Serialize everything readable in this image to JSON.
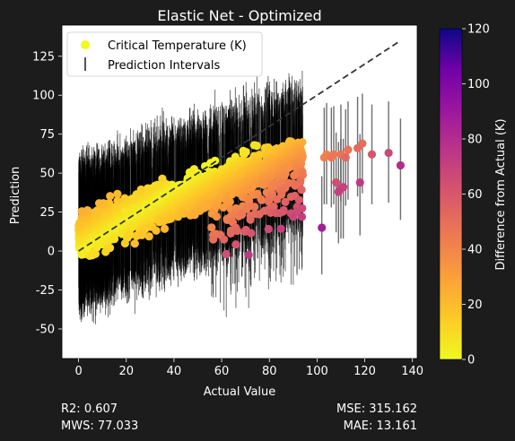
{
  "colors": {
    "background": "#1c1c1c",
    "plot_background": "#ffffff",
    "interval_color": "#000000",
    "diagonal_color": "#333333"
  },
  "chart_data": {
    "type": "scatter",
    "title": "Elastic Net - Optimized",
    "xlabel": "Actual Value",
    "ylabel": "Prediction",
    "xlim": [
      -7,
      142
    ],
    "ylim": [
      -69,
      145
    ],
    "xticks": [
      0,
      20,
      40,
      60,
      80,
      100,
      120,
      140
    ],
    "yticks": [
      -50,
      -25,
      0,
      25,
      50,
      75,
      100,
      125
    ],
    "grid": false,
    "legend": {
      "placement": "top-left",
      "entries": [
        {
          "label": "Critical Temperature (K)",
          "marker": "circle",
          "color": "#f0f921"
        },
        {
          "label": "Prediction Intervals",
          "marker": "vertical-line",
          "color": "#555555"
        }
      ]
    },
    "colorbar": {
      "label": "Difference from Actual (K)",
      "colormap": "plasma_r",
      "range": [
        0,
        120
      ],
      "ticks": [
        0,
        20,
        40,
        60,
        80,
        100,
        120
      ]
    },
    "diagonal": {
      "style": "dashed",
      "x": [
        0,
        135
      ],
      "y": [
        0,
        135
      ]
    },
    "point_color_value": "absolute difference between prediction and actual",
    "dense_cloud": {
      "x_range": [
        0,
        94
      ],
      "prediction_trend": {
        "intercept": 10,
        "slope": 0.55,
        "cap": 62
      },
      "prediction_spread": 12,
      "interval_halfwidth": 40
    },
    "highlighted_points": [
      {
        "x": 103,
        "y": 60,
        "low": 30,
        "high": 92
      },
      {
        "x": 102,
        "y": 15,
        "low": -15,
        "high": 48
      },
      {
        "x": 104,
        "y": 62,
        "low": 30,
        "high": 95
      },
      {
        "x": 106,
        "y": 60,
        "low": 28,
        "high": 92
      },
      {
        "x": 107,
        "y": 62,
        "low": 30,
        "high": 93
      },
      {
        "x": 108,
        "y": 44,
        "low": 12,
        "high": 76
      },
      {
        "x": 109,
        "y": 38,
        "low": 5,
        "high": 70
      },
      {
        "x": 110,
        "y": 62,
        "low": 32,
        "high": 94
      },
      {
        "x": 110,
        "y": 40,
        "low": 8,
        "high": 72
      },
      {
        "x": 111,
        "y": 41,
        "low": 8,
        "high": 72
      },
      {
        "x": 112,
        "y": 60,
        "low": 29,
        "high": 91
      },
      {
        "x": 113,
        "y": 65,
        "low": 33,
        "high": 96
      },
      {
        "x": 117,
        "y": 66,
        "low": 35,
        "high": 99
      },
      {
        "x": 118,
        "y": 44,
        "low": 10,
        "high": 75
      },
      {
        "x": 119,
        "y": 69,
        "low": 37,
        "high": 101
      },
      {
        "x": 123,
        "y": 62,
        "low": 30,
        "high": 94
      },
      {
        "x": 130,
        "y": 63,
        "low": 31,
        "high": 96
      },
      {
        "x": 135,
        "y": 55,
        "low": 20,
        "high": 85
      }
    ]
  },
  "metrics": {
    "r2": "R2: 0.607",
    "mws": "MWS: 77.033",
    "mse": "MSE: 315.162",
    "mae": "MAE: 13.161"
  }
}
